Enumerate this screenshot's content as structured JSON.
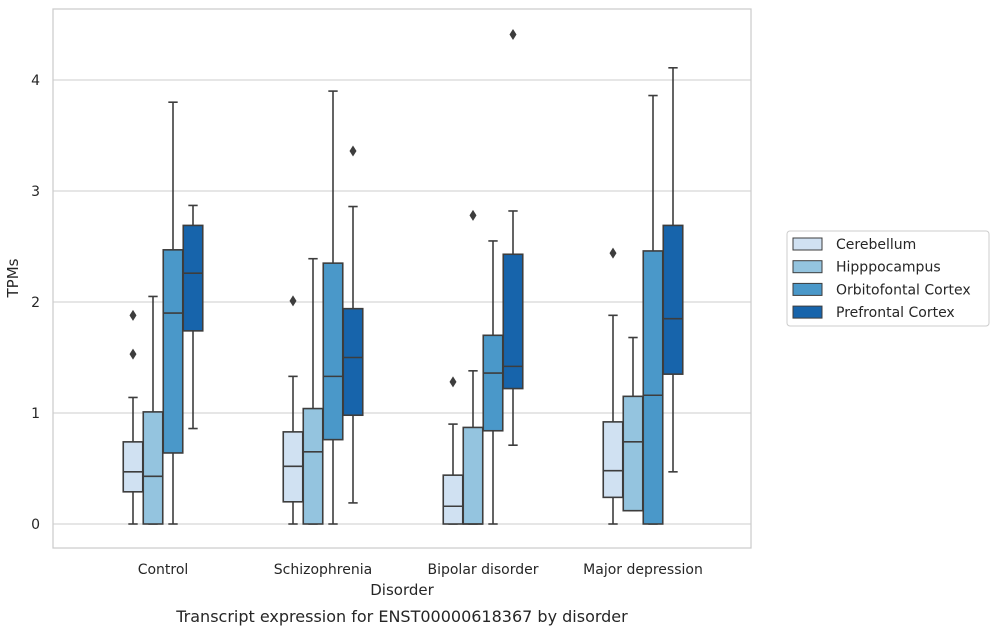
{
  "chart_data": {
    "type": "box",
    "title": "",
    "caption": "Transcript expression for ENST00000618367 by disorder",
    "xlabel": "Disorder",
    "ylabel": "TPMs",
    "ylim": [
      -0.21,
      4.64
    ],
    "yticks": [
      0,
      1,
      2,
      3,
      4
    ],
    "grid": true,
    "legend_position": "right",
    "categories": [
      "Control",
      "Schizophrenia",
      "Bipolar disorder",
      "Major depression"
    ],
    "series": [
      {
        "name": "Cerebellum",
        "color": "#d0e1f2",
        "boxes": [
          {
            "whisker_low": 0.0,
            "q1": 0.29,
            "median": 0.47,
            "q3": 0.74,
            "whisker_high": 1.14,
            "outliers": [
              1.53,
              1.88
            ]
          },
          {
            "whisker_low": 0.0,
            "q1": 0.2,
            "median": 0.52,
            "q3": 0.83,
            "whisker_high": 1.33,
            "outliers": [
              2.01
            ]
          },
          {
            "whisker_low": 0.0,
            "q1": 0.0,
            "median": 0.16,
            "q3": 0.44,
            "whisker_high": 0.9,
            "outliers": [
              1.28
            ]
          },
          {
            "whisker_low": 0.0,
            "q1": 0.24,
            "median": 0.48,
            "q3": 0.92,
            "whisker_high": 1.88,
            "outliers": [
              2.44
            ]
          }
        ]
      },
      {
        "name": "Hipppocampus",
        "color": "#94c4df",
        "boxes": [
          {
            "whisker_low": 0.0,
            "q1": 0.0,
            "median": 0.43,
            "q3": 1.01,
            "whisker_high": 2.05,
            "outliers": []
          },
          {
            "whisker_low": 0.0,
            "q1": 0.0,
            "median": 0.65,
            "q3": 1.04,
            "whisker_high": 2.39,
            "outliers": []
          },
          {
            "whisker_low": 0.0,
            "q1": 0.0,
            "median": 0.0,
            "q3": 0.87,
            "whisker_high": 1.38,
            "outliers": [
              2.78
            ]
          },
          {
            "whisker_low": 0.12,
            "q1": 0.12,
            "median": 0.74,
            "q3": 1.15,
            "whisker_high": 1.68,
            "outliers": []
          }
        ]
      },
      {
        "name": "Orbitofontal Cortex",
        "color": "#4a98c9",
        "boxes": [
          {
            "whisker_low": 0.0,
            "q1": 0.64,
            "median": 1.9,
            "q3": 2.47,
            "whisker_high": 3.8,
            "outliers": []
          },
          {
            "whisker_low": 0.0,
            "q1": 0.76,
            "median": 1.33,
            "q3": 2.35,
            "whisker_high": 3.9,
            "outliers": []
          },
          {
            "whisker_low": 0.0,
            "q1": 0.84,
            "median": 1.36,
            "q3": 1.7,
            "whisker_high": 2.55,
            "outliers": []
          },
          {
            "whisker_low": 0.0,
            "q1": 0.0,
            "median": 1.16,
            "q3": 2.46,
            "whisker_high": 3.86,
            "outliers": []
          }
        ]
      },
      {
        "name": "Prefrontal Cortex",
        "color": "#1764ab",
        "boxes": [
          {
            "whisker_low": 0.86,
            "q1": 1.74,
            "median": 2.26,
            "q3": 2.69,
            "whisker_high": 2.87,
            "outliers": []
          },
          {
            "whisker_low": 0.19,
            "q1": 0.98,
            "median": 1.5,
            "q3": 1.94,
            "whisker_high": 2.86,
            "outliers": [
              3.36
            ]
          },
          {
            "whisker_low": 0.71,
            "q1": 1.22,
            "median": 1.42,
            "q3": 2.43,
            "whisker_high": 2.82,
            "outliers": [
              4.41
            ]
          },
          {
            "whisker_low": 0.47,
            "q1": 1.35,
            "median": 1.85,
            "q3": 2.69,
            "whisker_high": 4.11,
            "outliers": []
          }
        ]
      }
    ]
  }
}
